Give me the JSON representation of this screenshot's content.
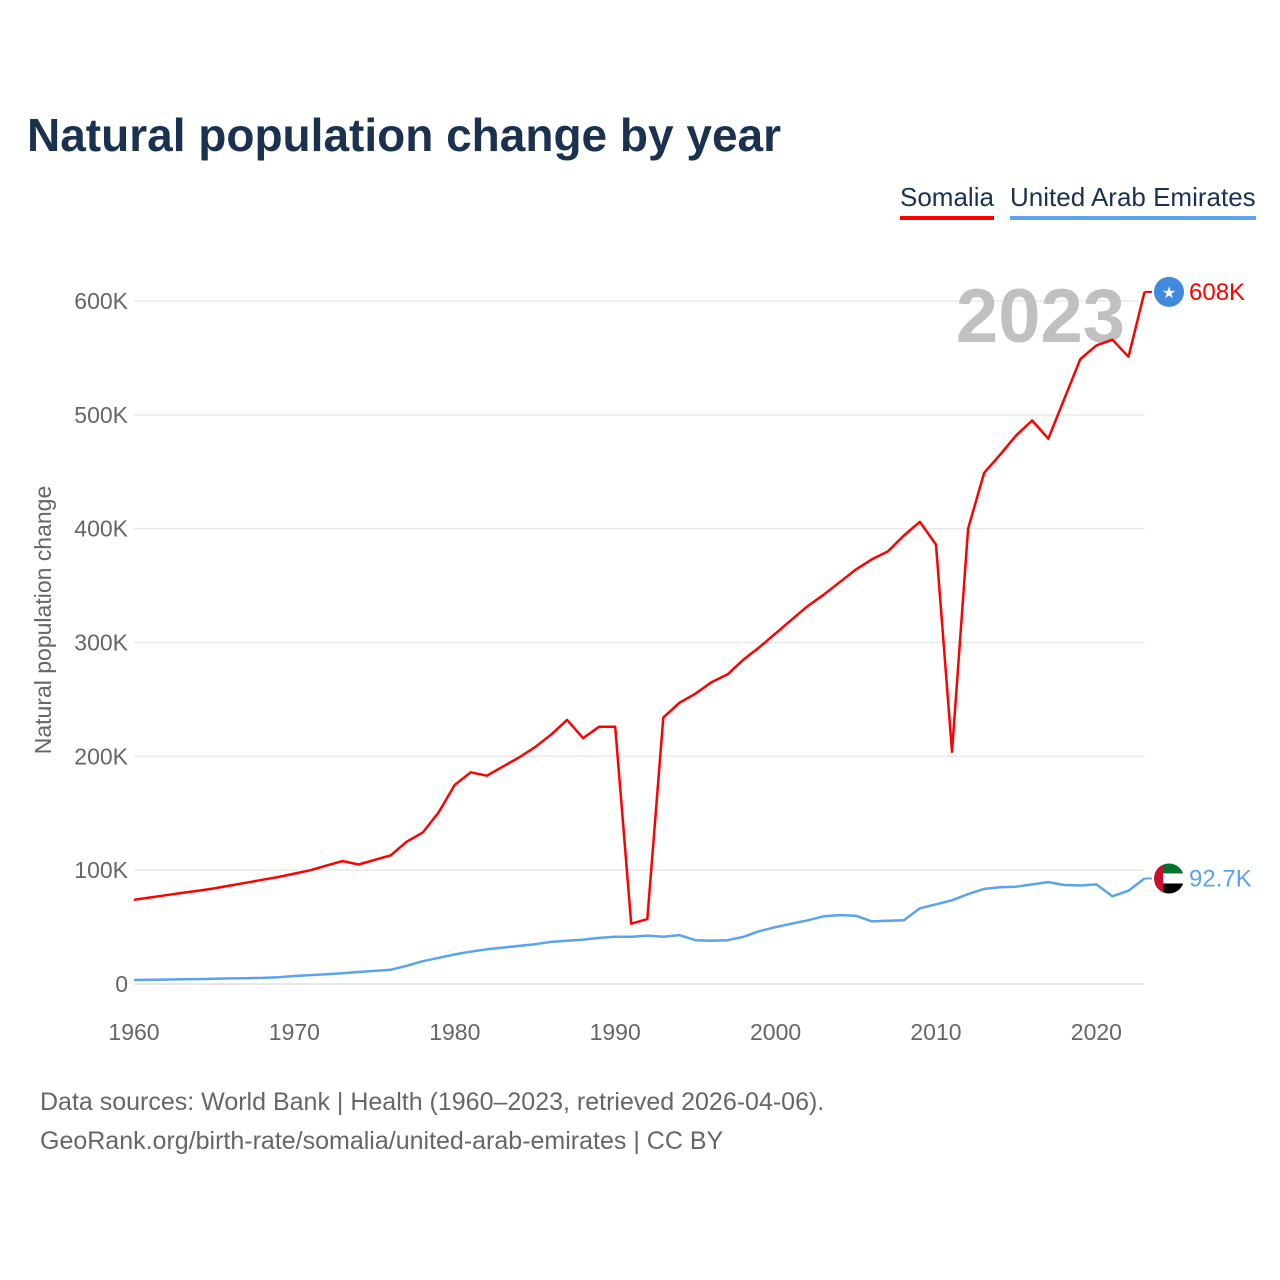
{
  "chart_data": {
    "type": "line",
    "title": "Natural population change by year",
    "ylabel": "Natural population change",
    "xlabel": "",
    "xlim": [
      1960,
      2023
    ],
    "ylim": [
      0,
      600000
    ],
    "x_ticks": [
      "1960",
      "1970",
      "1980",
      "1990",
      "2000",
      "2010",
      "2020"
    ],
    "y_ticks": [
      "0",
      "100K",
      "200K",
      "300K",
      "400K",
      "500K",
      "600K"
    ],
    "year_label": "2023",
    "grid": true,
    "legend_placement": "top-right",
    "x": [
      1960,
      1961,
      1962,
      1963,
      1964,
      1965,
      1966,
      1967,
      1968,
      1969,
      1970,
      1971,
      1972,
      1973,
      1974,
      1975,
      1976,
      1977,
      1978,
      1979,
      1980,
      1981,
      1982,
      1983,
      1984,
      1985,
      1986,
      1987,
      1988,
      1989,
      1990,
      1991,
      1992,
      1993,
      1994,
      1995,
      1996,
      1997,
      1998,
      1999,
      2000,
      2001,
      2002,
      2003,
      2004,
      2005,
      2006,
      2007,
      2008,
      2009,
      2010,
      2011,
      2012,
      2013,
      2014,
      2015,
      2016,
      2017,
      2018,
      2019,
      2020,
      2021,
      2022,
      2023
    ],
    "series": [
      {
        "name": "Somalia",
        "color": "#ff0000",
        "end_label": "608K",
        "flag": "somalia",
        "values": [
          74000,
          76000,
          78000,
          80000,
          82000,
          84000,
          86500,
          89000,
          91500,
          94000,
          97000,
          100000,
          104000,
          108000,
          105000,
          109000,
          113000,
          125000,
          133000,
          151000,
          175000,
          186000,
          183000,
          191000,
          199000,
          208000,
          219000,
          232000,
          216000,
          226000,
          226000,
          53000,
          57000,
          234000,
          247000,
          255000,
          265000,
          272000,
          285000,
          296000,
          308000,
          320000,
          332000,
          342000,
          353000,
          364000,
          373000,
          380000,
          394000,
          406000,
          386000,
          204000,
          400000,
          449000,
          465000,
          482000,
          495000,
          479000,
          514000,
          549000,
          561000,
          566000,
          551000,
          608000
        ]
      },
      {
        "name": "United Arab Emirates",
        "color": "#5ba3ec",
        "end_label": "92.7K",
        "flag": "uae",
        "values": [
          3500,
          3700,
          3900,
          4100,
          4300,
          4600,
          4900,
          5100,
          5400,
          6000,
          7000,
          7800,
          8600,
          9500,
          10500,
          11500,
          12500,
          16000,
          20000,
          23000,
          26000,
          28500,
          30500,
          32000,
          33500,
          35000,
          37000,
          38000,
          39000,
          40500,
          41500,
          41500,
          42500,
          41500,
          43000,
          38500,
          38000,
          38500,
          41500,
          46500,
          50000,
          53000,
          56000,
          59500,
          60500,
          60000,
          55000,
          55500,
          56000,
          66500,
          70000,
          73500,
          79000,
          83500,
          85000,
          85500,
          87500,
          89500,
          87000,
          86500,
          87500,
          77000,
          82000,
          92700
        ]
      }
    ]
  },
  "footer": {
    "line1": "Data sources: World Bank | Health (1960–2023, retrieved 2026-04-06).",
    "line2": "GeoRank.org/birth-rate/somalia/united-arab-emirates | CC BY"
  }
}
